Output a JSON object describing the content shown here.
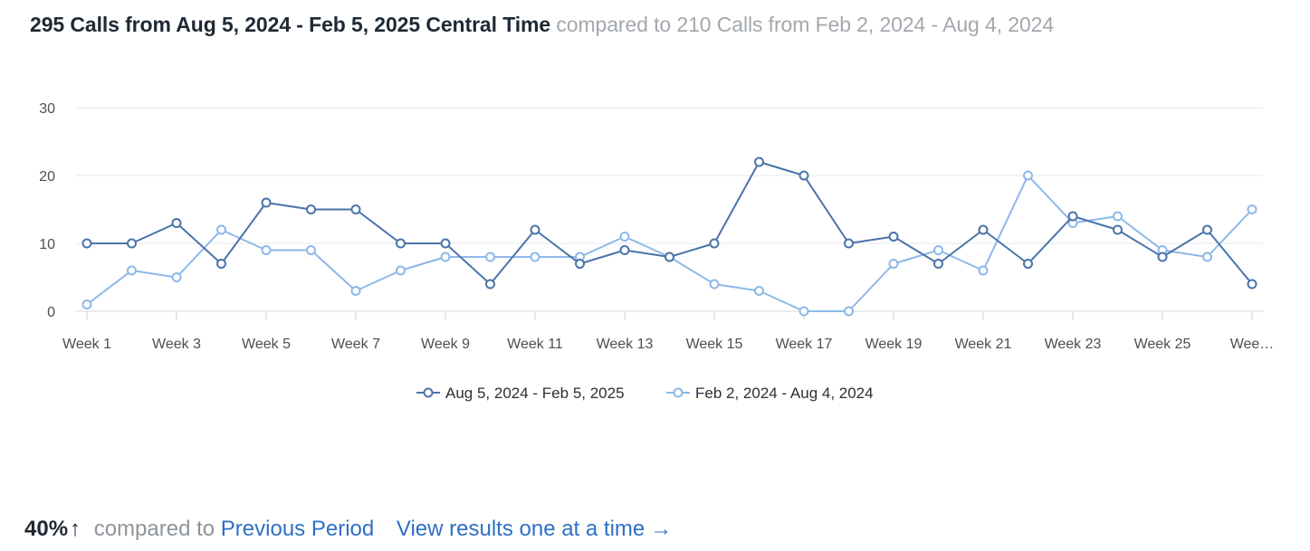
{
  "header": {
    "primary_text": "295 Calls from Aug 5, 2024 - Feb 5, 2025 Central Time",
    "secondary_text": "compared to 210 Calls from Feb 2, 2024 - Aug 4, 2024"
  },
  "footer": {
    "percent": "40%",
    "arrow_glyph": "↑",
    "compared_text": "compared to",
    "previous_period_link": "Previous Period",
    "view_results_link": "View results one at a time",
    "view_arrow_glyph": "→"
  },
  "colors": {
    "current_series": "#4a74aa",
    "previous_series": "#8db8e8",
    "gridline": "#e6e8eb",
    "axis_text": "#4a4f55",
    "link": "#2f6fc7"
  },
  "chart_data": {
    "type": "line",
    "x_labels": [
      "Week 1",
      "",
      "Week 3",
      "",
      "Week 5",
      "",
      "Week 7",
      "",
      "Week 9",
      "",
      "Week 11",
      "",
      "Week 13",
      "",
      "Week 15",
      "",
      "Week 17",
      "",
      "Week 19",
      "",
      "Week 21",
      "",
      "Week 23",
      "",
      "Week 25",
      "",
      "Wee…"
    ],
    "ylim": [
      0,
      30
    ],
    "yticks": [
      0,
      10,
      20,
      30
    ],
    "grid": true,
    "legend_position": "bottom-center",
    "series": [
      {
        "name": "Aug 5, 2024 - Feb 5, 2025",
        "color": "#4a74aa",
        "values": [
          10,
          10,
          13,
          7,
          16,
          15,
          15,
          10,
          10,
          4,
          12,
          7,
          9,
          8,
          10,
          22,
          20,
          10,
          11,
          7,
          12,
          7,
          14,
          12,
          8,
          12,
          4
        ]
      },
      {
        "name": "Feb 2, 2024 - Aug 4, 2024",
        "color": "#8db8e8",
        "values": [
          1,
          6,
          5,
          12,
          9,
          9,
          3,
          6,
          8,
          8,
          8,
          8,
          11,
          8,
          4,
          3,
          0,
          0,
          7,
          9,
          6,
          20,
          13,
          14,
          9,
          8,
          15
        ]
      }
    ]
  }
}
